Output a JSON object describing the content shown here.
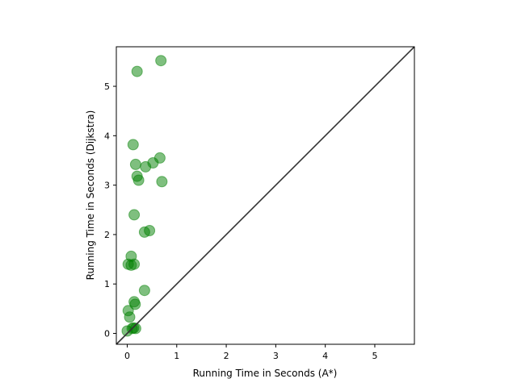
{
  "chart_data": {
    "type": "scatter",
    "title": "",
    "xlabel": "Running Time in Seconds (A*)",
    "ylabel": "Running Time in Seconds (Dijkstra)",
    "xlim": [
      -0.22,
      5.8
    ],
    "ylim": [
      -0.22,
      5.8
    ],
    "xticks": [
      0,
      1,
      2,
      3,
      4,
      5
    ],
    "yticks": [
      0,
      1,
      2,
      3,
      4,
      5
    ],
    "xtick_labels": [
      "0",
      "1",
      "2",
      "3",
      "4",
      "5"
    ],
    "ytick_labels": [
      "0",
      "1",
      "2",
      "3",
      "4",
      "5"
    ],
    "grid": false,
    "reference_line": "y = x",
    "marker_color": "#008000",
    "line_color": "#333333",
    "points": [
      {
        "x": 0.68,
        "y": 5.52
      },
      {
        "x": 0.2,
        "y": 5.3
      },
      {
        "x": 0.12,
        "y": 3.82
      },
      {
        "x": 0.66,
        "y": 3.55
      },
      {
        "x": 0.52,
        "y": 3.45
      },
      {
        "x": 0.17,
        "y": 3.42
      },
      {
        "x": 0.37,
        "y": 3.37
      },
      {
        "x": 0.2,
        "y": 3.18
      },
      {
        "x": 0.23,
        "y": 3.1
      },
      {
        "x": 0.7,
        "y": 3.07
      },
      {
        "x": 0.14,
        "y": 2.4
      },
      {
        "x": 0.45,
        "y": 2.08
      },
      {
        "x": 0.35,
        "y": 2.05
      },
      {
        "x": 0.08,
        "y": 1.56
      },
      {
        "x": 0.02,
        "y": 1.4
      },
      {
        "x": 0.08,
        "y": 1.38
      },
      {
        "x": 0.14,
        "y": 1.4
      },
      {
        "x": 0.35,
        "y": 0.87
      },
      {
        "x": 0.14,
        "y": 0.64
      },
      {
        "x": 0.16,
        "y": 0.59
      },
      {
        "x": 0.02,
        "y": 0.46
      },
      {
        "x": 0.05,
        "y": 0.33
      },
      {
        "x": 0.13,
        "y": 0.11
      },
      {
        "x": 0.17,
        "y": 0.1
      },
      {
        "x": 0.1,
        "y": 0.1
      },
      {
        "x": 0.0,
        "y": 0.05
      }
    ]
  }
}
